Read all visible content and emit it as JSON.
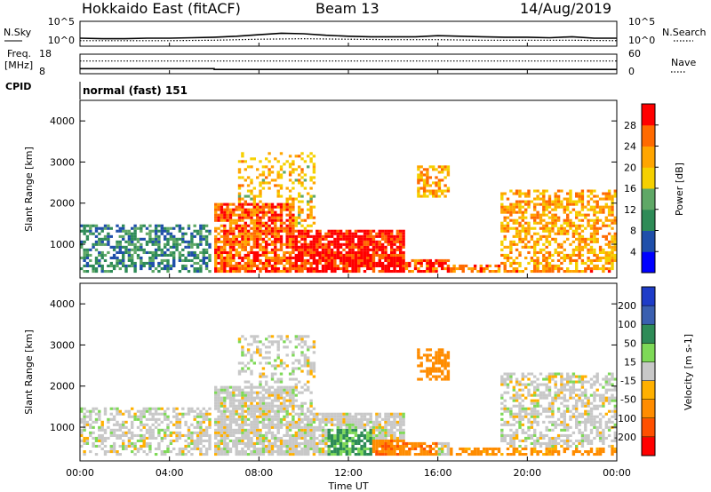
{
  "header": {
    "radar": "Hokkaido East (fitACF)",
    "beam": "Beam 13",
    "date": "14/Aug/2019"
  },
  "colors": {
    "power_scale": [
      "#0000ff",
      "#1f4faa",
      "#2e8b57",
      "#5fa866",
      "#f5d000",
      "#ffa500",
      "#ff6a00",
      "#ff0000"
    ],
    "velocity_scale": [
      "#1e3cc8",
      "#3a5fb0",
      "#2e8b57",
      "#7ed957",
      "#c8c8c8",
      "#ffb000",
      "#ff8c00",
      "#ff5000",
      "#ff0000"
    ]
  },
  "chart_data": [
    {
      "type": "line",
      "panel": "noise",
      "left_label": "N.Sky",
      "right_label": "N.Search",
      "left_ticks": [
        "10^5",
        "10^0"
      ],
      "right_ticks": [
        "10^5",
        "10^0"
      ],
      "series": [
        {
          "name": "N.Sky",
          "style": "solid",
          "x": [
            0,
            1,
            2,
            3,
            4,
            5,
            6,
            7,
            8,
            9,
            10,
            11,
            12,
            13,
            14,
            15,
            16,
            17,
            18,
            19,
            20,
            21,
            22,
            23,
            24
          ],
          "y": [
            1.6,
            1.5,
            1.5,
            1.6,
            1.6,
            1.7,
            1.8,
            2.0,
            2.3,
            2.6,
            2.5,
            2.2,
            2.0,
            1.9,
            1.9,
            1.9,
            2.1,
            2.0,
            1.9,
            1.8,
            1.8,
            1.7,
            1.9,
            1.6,
            1.6
          ]
        },
        {
          "name": "N.Search",
          "style": "dotted",
          "x": [
            0,
            2,
            4,
            6,
            8,
            10,
            12,
            14,
            16,
            18,
            20,
            22,
            24
          ],
          "y": [
            1.1,
            1.1,
            1.1,
            1.2,
            1.4,
            1.5,
            1.4,
            1.3,
            1.3,
            1.2,
            1.2,
            1.2,
            1.1
          ]
        }
      ]
    },
    {
      "type": "line",
      "panel": "frequency",
      "left_label": "Freq.",
      "left_unit": "[MHz]",
      "right_label": "Nave",
      "left_ticks": [
        18,
        8
      ],
      "right_ticks": [
        60,
        0
      ],
      "ylim_left": [
        8,
        18
      ],
      "ylim_right": [
        0,
        60
      ],
      "series": [
        {
          "name": "Freq.",
          "style": "solid",
          "x": [
            0,
            6,
            6,
            24
          ],
          "y": [
            10.6,
            10.6,
            10.2,
            10.2
          ]
        },
        {
          "name": "Nave",
          "style": "dotted",
          "x": [
            0,
            24
          ],
          "y": [
            39,
            39
          ]
        }
      ]
    },
    {
      "type": "text",
      "panel": "cpid",
      "label": "CPID",
      "value": "normal (fast) 151"
    },
    {
      "type": "heatmap",
      "panel": "power",
      "ylabel": "Slant Range [km]",
      "y_ticks": [
        1000,
        2000,
        3000,
        4000
      ],
      "ylim": [
        180,
        4500
      ],
      "xlim": [
        0,
        24
      ],
      "colorbar_label": "Power [dB]",
      "colorbar_ticks": [
        4,
        8,
        12,
        16,
        20,
        24,
        28
      ],
      "clim": [
        0,
        32
      ]
    },
    {
      "type": "heatmap",
      "panel": "velocity",
      "ylabel": "Slant Range [km]",
      "y_ticks": [
        1000,
        2000,
        3000,
        4000
      ],
      "ylim": [
        180,
        4500
      ],
      "xlim": [
        0,
        24
      ],
      "colorbar_label": "Velocity [m s-1]",
      "colorbar_ticks": [
        200,
        100,
        50,
        15,
        -15,
        -50,
        -100,
        -200
      ]
    }
  ],
  "x_axis": {
    "ticks": [
      "00:00",
      "04:00",
      "08:00",
      "12:00",
      "16:00",
      "20:00",
      "00:00"
    ],
    "label": "Time UT"
  }
}
